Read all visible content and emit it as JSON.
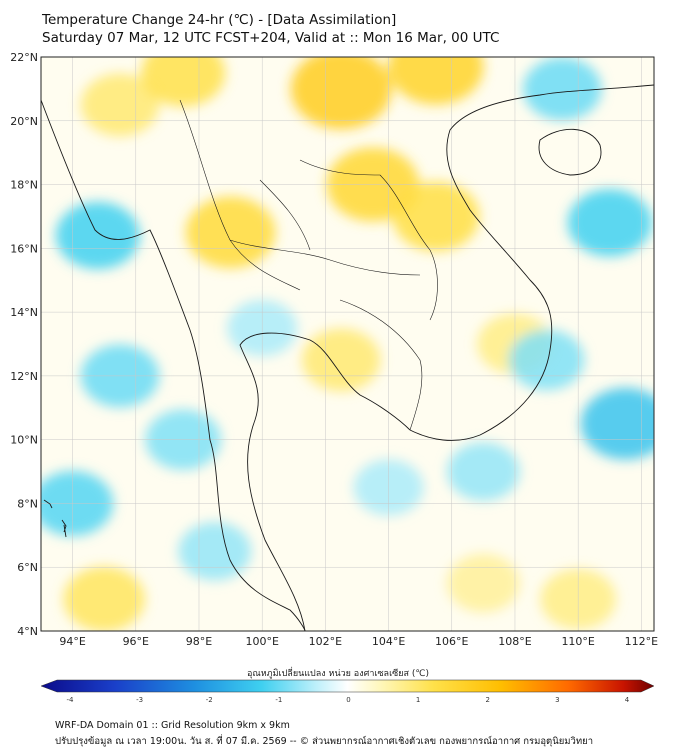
{
  "title": {
    "line1": "Temperature Change 24-hr (℃) - [Data Assimilation]",
    "line2": "Saturday 07 Mar, 12 UTC FCST+204, Valid at :: Mon 16 Mar, 00 UTC"
  },
  "map": {
    "lat_labels": [
      "22°N",
      "20°N",
      "18°N",
      "16°N",
      "14°N",
      "12°N",
      "10°N",
      "8°N",
      "6°N",
      "4°N"
    ],
    "lon_labels": [
      "94°E",
      "96°E",
      "98°E",
      "100°E",
      "102°E",
      "104°E",
      "106°E",
      "108°E",
      "110°E",
      "112°E"
    ],
    "lat_range": [
      4,
      22
    ],
    "lon_range": [
      93,
      112.4
    ],
    "grid": true
  },
  "colorbar": {
    "label": "อุณหภูมิเปลี่ยนแปลง หน่วย องศาเซลเซียส (℃)",
    "ticks": [
      "-4",
      "-3",
      "-2",
      "-1",
      "0",
      "1",
      "2",
      "3",
      "4"
    ],
    "range": [
      -4,
      4
    ],
    "colors": [
      "#0b0b8a",
      "#1f4fd8",
      "#2fb6e8",
      "#bfeefa",
      "#ffffff",
      "#fff6b0",
      "#ffd200",
      "#ff7a00",
      "#d21a00",
      "#6e0000"
    ]
  },
  "footer": {
    "line1": "WRF-DA Domain 01 :: Grid Resolution 9km x 9km",
    "line2": "ปรับปรุงข้อมูล ณ เวลา 19:00น. วัน ส. ที่ 07 มี.ค. 2569 -- © ส่วนพยากรณ์อากาศเชิงตัวเลข กองพยากรณ์อากาศ กรมอุตุนิยมวิทยา"
  },
  "chart_data": {
    "type": "heatmap",
    "variable": "24-hr temperature change",
    "unit": "°C",
    "x_axis": "longitude",
    "y_axis": "latitude",
    "xlim": [
      93,
      112.4
    ],
    "ylim": [
      4,
      22
    ],
    "value_range": [
      -4,
      4
    ],
    "anomalies": [
      {
        "lon": 102.5,
        "lat": 21.0,
        "value": 1.6
      },
      {
        "lon": 105.5,
        "lat": 21.7,
        "value": 1.4
      },
      {
        "lon": 103.5,
        "lat": 18.0,
        "value": 1.3
      },
      {
        "lon": 105.5,
        "lat": 17.0,
        "value": 1.1
      },
      {
        "lon": 99.0,
        "lat": 16.5,
        "value": 1.2
      },
      {
        "lon": 95.5,
        "lat": 20.5,
        "value": 0.8
      },
      {
        "lon": 97.5,
        "lat": 21.5,
        "value": 1.0
      },
      {
        "lon": 102.5,
        "lat": 12.5,
        "value": 0.8
      },
      {
        "lon": 95.0,
        "lat": 5.0,
        "value": 0.9
      },
      {
        "lon": 110.0,
        "lat": 5.0,
        "value": 0.7
      },
      {
        "lon": 108.0,
        "lat": 13.0,
        "value": 0.7
      },
      {
        "lon": 107.0,
        "lat": 5.5,
        "value": 0.6
      },
      {
        "lon": 94.8,
        "lat": 16.4,
        "value": -1.0
      },
      {
        "lon": 95.5,
        "lat": 12.0,
        "value": -0.8
      },
      {
        "lon": 94.0,
        "lat": 8.0,
        "value": -0.9
      },
      {
        "lon": 97.5,
        "lat": 10.0,
        "value": -0.7
      },
      {
        "lon": 111.0,
        "lat": 16.8,
        "value": -1.0
      },
      {
        "lon": 111.5,
        "lat": 10.5,
        "value": -1.2
      },
      {
        "lon": 109.5,
        "lat": 21.0,
        "value": -0.8
      },
      {
        "lon": 109.0,
        "lat": 12.5,
        "value": -0.7
      },
      {
        "lon": 100.0,
        "lat": 13.5,
        "value": -0.5
      },
      {
        "lon": 98.5,
        "lat": 6.5,
        "value": -0.6
      },
      {
        "lon": 104.0,
        "lat": 8.5,
        "value": -0.5
      },
      {
        "lon": 107.0,
        "lat": 9.0,
        "value": -0.6
      }
    ]
  }
}
